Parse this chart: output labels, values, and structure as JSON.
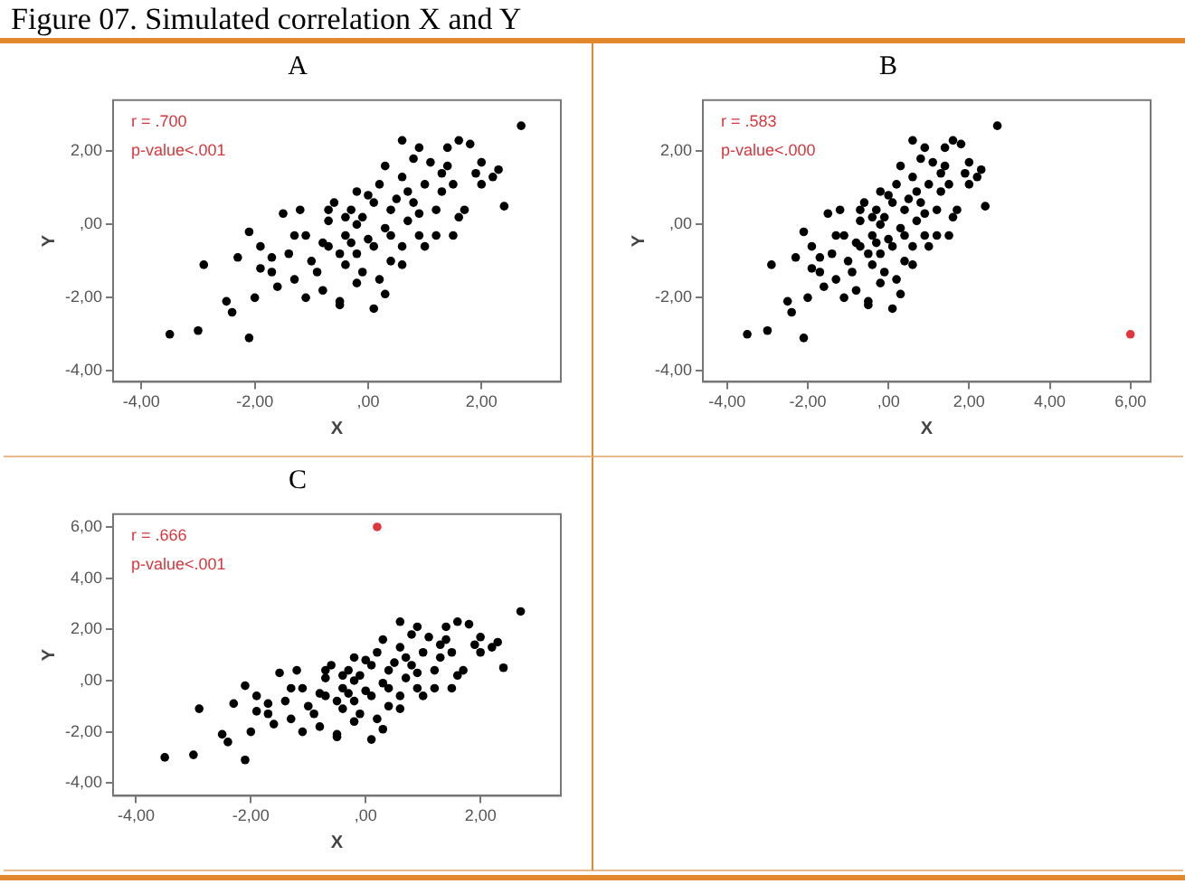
{
  "chart_data": [
    {
      "type": "scatter",
      "title": "Figure 07. Simulated correlation X and Y",
      "subtitle": "A",
      "xlabel": "X",
      "ylabel": "Y",
      "annotations": [
        "r = .700",
        "p-value<.001"
      ],
      "marker": "circle",
      "grid": false,
      "xlim": [
        -4.5,
        3.4
      ],
      "ylim": [
        -4.3,
        3.4
      ],
      "xticks": [
        {
          "value": -4,
          "label": "-4,00"
        },
        {
          "value": -2,
          "label": "-2,00"
        },
        {
          "value": 0,
          "label": ",00"
        },
        {
          "value": 2,
          "label": "2,00"
        }
      ],
      "yticks": [
        {
          "value": -4,
          "label": "-4,00"
        },
        {
          "value": -2,
          "label": "-2,00"
        },
        {
          "value": 0,
          "label": ",00"
        },
        {
          "value": 2,
          "label": "2,00"
        }
      ],
      "series": [
        {
          "color": "#000000",
          "x": [
            -3.5,
            -3.0,
            -2.9,
            -2.5,
            -2.4,
            -2.3,
            -2.1,
            -2.1,
            -2.0,
            -1.9,
            -1.9,
            -1.7,
            -1.7,
            -1.6,
            -1.5,
            -1.4,
            -1.3,
            -1.1,
            -1.2,
            -1.1,
            -1.0,
            -0.9,
            -0.8,
            -0.7,
            -0.7,
            -0.6,
            -0.5,
            -0.5,
            -0.4,
            -0.4,
            -0.3,
            -0.2,
            -0.2,
            -0.2,
            -0.1,
            -0.1,
            0.0,
            0.1,
            0.1,
            0.2,
            0.2,
            0.3,
            0.3,
            0.4,
            0.4,
            0.5,
            0.6,
            0.6,
            0.6,
            0.7,
            0.8,
            0.8,
            0.9,
            0.9,
            1.0,
            1.0,
            1.1,
            1.2,
            1.3,
            1.4,
            1.4,
            1.5,
            1.5,
            1.6,
            1.6,
            1.7,
            1.8,
            1.9,
            2.0,
            2.0,
            2.2,
            2.3,
            2.4,
            2.7,
            -0.5,
            -0.4,
            0.1,
            0.4,
            -0.3,
            -0.8,
            -1.3,
            -0.2,
            0.3,
            0.9,
            1.2,
            0.6,
            0.0,
            -0.7,
            0.7,
            1.3
          ],
          "values": [
            -3.0,
            -2.9,
            -1.1,
            -2.1,
            -2.4,
            -0.9,
            -3.1,
            -0.2,
            -2.0,
            -1.2,
            -0.6,
            -0.9,
            -1.3,
            -1.7,
            0.3,
            -0.8,
            -1.5,
            -2.0,
            0.4,
            -0.3,
            -1.0,
            -1.3,
            -1.8,
            -0.6,
            0.1,
            0.6,
            -2.1,
            -2.2,
            -1.1,
            -0.3,
            0.4,
            -0.8,
            0.0,
            0.9,
            -1.3,
            0.2,
            -0.4,
            0.6,
            -2.3,
            -1.5,
            1.1,
            -1.9,
            -0.1,
            0.4,
            -1.0,
            0.7,
            2.3,
            -1.1,
            1.3,
            0.1,
            1.8,
            0.6,
            2.1,
            -0.3,
            1.1,
            -0.6,
            1.7,
            0.4,
            0.9,
            2.1,
            1.6,
            -0.3,
            1.1,
            2.3,
            0.2,
            0.4,
            2.2,
            1.4,
            1.1,
            1.7,
            1.3,
            1.5,
            0.5,
            2.7,
            -0.8,
            0.2,
            -0.6,
            -0.3,
            -0.5,
            -0.5,
            -0.3,
            -1.6,
            1.6,
            0.3,
            -0.3,
            -0.6,
            0.8,
            0.4,
            0.9,
            1.4
          ]
        }
      ]
    },
    {
      "type": "scatter",
      "subtitle": "B",
      "xlabel": "X",
      "ylabel": "Y",
      "annotations": [
        "r = .583",
        "p-value<.000"
      ],
      "marker": "circle",
      "grid": false,
      "xlim": [
        -4.6,
        6.5
      ],
      "ylim": [
        -4.3,
        3.4
      ],
      "xticks": [
        {
          "value": -4,
          "label": "-4,00"
        },
        {
          "value": -2,
          "label": "-2,00"
        },
        {
          "value": 0,
          "label": ",00"
        },
        {
          "value": 2,
          "label": "2,00"
        },
        {
          "value": 4,
          "label": "4,00"
        },
        {
          "value": 6,
          "label": "6,00"
        }
      ],
      "yticks": [
        {
          "value": -4,
          "label": "-4,00"
        },
        {
          "value": -2,
          "label": "-2,00"
        },
        {
          "value": 0,
          "label": ",00"
        },
        {
          "value": 2,
          "label": "2,00"
        }
      ],
      "series": [
        {
          "color": "#000000",
          "x": [
            -3.5,
            -3.0,
            -2.9,
            -2.5,
            -2.4,
            -2.3,
            -2.1,
            -2.1,
            -2.0,
            -1.9,
            -1.9,
            -1.7,
            -1.7,
            -1.6,
            -1.5,
            -1.4,
            -1.3,
            -1.1,
            -1.2,
            -1.1,
            -1.0,
            -0.9,
            -0.8,
            -0.7,
            -0.7,
            -0.6,
            -0.5,
            -0.5,
            -0.4,
            -0.4,
            -0.3,
            -0.2,
            -0.2,
            -0.2,
            -0.1,
            -0.1,
            0.0,
            0.1,
            0.1,
            0.2,
            0.2,
            0.3,
            0.3,
            0.4,
            0.4,
            0.5,
            0.6,
            0.6,
            0.6,
            0.7,
            0.8,
            0.8,
            0.9,
            0.9,
            1.0,
            1.0,
            1.1,
            1.2,
            1.3,
            1.4,
            1.4,
            1.5,
            1.5,
            1.6,
            1.6,
            1.7,
            1.8,
            1.9,
            2.0,
            2.0,
            2.2,
            2.3,
            2.4,
            2.7,
            -0.5,
            -0.4,
            0.1,
            0.4,
            -0.3,
            -0.8,
            -1.3,
            -0.2,
            0.3,
            0.9,
            1.2,
            0.6,
            0.0,
            -0.7,
            0.7,
            1.3
          ],
          "values": [
            -3.0,
            -2.9,
            -1.1,
            -2.1,
            -2.4,
            -0.9,
            -3.1,
            -0.2,
            -2.0,
            -1.2,
            -0.6,
            -0.9,
            -1.3,
            -1.7,
            0.3,
            -0.8,
            -1.5,
            -2.0,
            0.4,
            -0.3,
            -1.0,
            -1.3,
            -1.8,
            -0.6,
            0.1,
            0.6,
            -2.1,
            -2.2,
            -1.1,
            -0.3,
            0.4,
            -0.8,
            0.0,
            0.9,
            -1.3,
            0.2,
            -0.4,
            0.6,
            -2.3,
            -1.5,
            1.1,
            -1.9,
            -0.1,
            0.4,
            -1.0,
            0.7,
            2.3,
            -1.1,
            1.3,
            0.1,
            1.8,
            0.6,
            2.1,
            -0.3,
            1.1,
            -0.6,
            1.7,
            0.4,
            0.9,
            2.1,
            1.6,
            -0.3,
            1.1,
            2.3,
            0.2,
            0.4,
            2.2,
            1.4,
            1.1,
            1.7,
            1.3,
            1.5,
            0.5,
            2.7,
            -0.8,
            0.2,
            -0.6,
            -0.3,
            -0.5,
            -0.5,
            -0.3,
            -1.6,
            1.6,
            0.3,
            -0.3,
            -0.6,
            0.8,
            0.4,
            0.9,
            1.4
          ]
        },
        {
          "color": "#e0353d",
          "x": [
            6.0
          ],
          "values": [
            -3.0
          ]
        }
      ]
    },
    {
      "type": "scatter",
      "subtitle": "C",
      "xlabel": "X",
      "ylabel": "Y",
      "annotations": [
        "r = .666",
        "p-value<.001"
      ],
      "marker": "circle",
      "grid": false,
      "xlim": [
        -4.4,
        3.4
      ],
      "ylim": [
        -4.5,
        6.5
      ],
      "xticks": [
        {
          "value": -4,
          "label": "-4,00"
        },
        {
          "value": -2,
          "label": "-2,00"
        },
        {
          "value": 0,
          "label": ",00"
        },
        {
          "value": 2,
          "label": "2,00"
        }
      ],
      "yticks": [
        {
          "value": -4,
          "label": "-4,00"
        },
        {
          "value": -2,
          "label": "-2,00"
        },
        {
          "value": 0,
          "label": ",00"
        },
        {
          "value": 2,
          "label": "2,00"
        },
        {
          "value": 4,
          "label": "4,00"
        },
        {
          "value": 6,
          "label": "6,00"
        }
      ],
      "series": [
        {
          "color": "#000000",
          "x": [
            -3.5,
            -3.0,
            -2.9,
            -2.5,
            -2.4,
            -2.3,
            -2.1,
            -2.1,
            -2.0,
            -1.9,
            -1.9,
            -1.7,
            -1.7,
            -1.6,
            -1.5,
            -1.4,
            -1.3,
            -1.1,
            -1.2,
            -1.1,
            -1.0,
            -0.9,
            -0.8,
            -0.7,
            -0.7,
            -0.6,
            -0.5,
            -0.5,
            -0.4,
            -0.4,
            -0.3,
            -0.2,
            -0.2,
            -0.2,
            -0.1,
            -0.1,
            0.0,
            0.1,
            0.1,
            0.2,
            0.2,
            0.3,
            0.3,
            0.4,
            0.4,
            0.5,
            0.6,
            0.6,
            0.6,
            0.7,
            0.8,
            0.8,
            0.9,
            0.9,
            1.0,
            1.0,
            1.1,
            1.2,
            1.3,
            1.4,
            1.4,
            1.5,
            1.5,
            1.6,
            1.6,
            1.7,
            1.8,
            1.9,
            2.0,
            2.0,
            2.2,
            2.3,
            2.4,
            2.7,
            -0.5,
            -0.4,
            0.1,
            0.4,
            -0.3,
            -0.8,
            -1.3,
            -0.2,
            0.3,
            0.9,
            1.2,
            0.6,
            0.0,
            -0.7,
            0.7,
            1.3
          ],
          "values": [
            -3.0,
            -2.9,
            -1.1,
            -2.1,
            -2.4,
            -0.9,
            -3.1,
            -0.2,
            -2.0,
            -1.2,
            -0.6,
            -0.9,
            -1.3,
            -1.7,
            0.3,
            -0.8,
            -1.5,
            -2.0,
            0.4,
            -0.3,
            -1.0,
            -1.3,
            -1.8,
            -0.6,
            0.1,
            0.6,
            -2.1,
            -2.2,
            -1.1,
            -0.3,
            0.4,
            -0.8,
            0.0,
            0.9,
            -1.3,
            0.2,
            -0.4,
            0.6,
            -2.3,
            -1.5,
            1.1,
            -1.9,
            -0.1,
            0.4,
            -1.0,
            0.7,
            2.3,
            -1.1,
            1.3,
            0.1,
            1.8,
            0.6,
            2.1,
            -0.3,
            1.1,
            -0.6,
            1.7,
            0.4,
            0.9,
            2.1,
            1.6,
            -0.3,
            1.1,
            2.3,
            0.2,
            0.4,
            2.2,
            1.4,
            1.1,
            1.7,
            1.3,
            1.5,
            0.5,
            2.7,
            -0.8,
            0.2,
            -0.6,
            -0.3,
            -0.5,
            -0.5,
            -0.3,
            -1.6,
            1.6,
            0.3,
            -0.3,
            -0.6,
            0.8,
            0.4,
            0.9,
            1.4
          ]
        },
        {
          "color": "#e0353d",
          "x": [
            0.2
          ],
          "values": [
            6.0
          ]
        }
      ]
    }
  ]
}
